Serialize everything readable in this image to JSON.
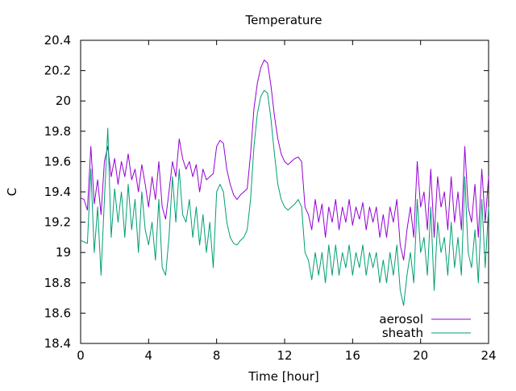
{
  "chart_data": {
    "type": "line",
    "title": "Temperature",
    "xlabel": "Time [hour]",
    "ylabel": "C",
    "xlim": [
      0,
      24
    ],
    "ylim": [
      18.4,
      20.4
    ],
    "x_ticks": [
      0,
      4,
      8,
      12,
      16,
      20,
      24
    ],
    "x_tick_labels": [
      "0",
      "4",
      "8",
      "12",
      "16",
      "20",
      "24"
    ],
    "y_ticks": [
      18.4,
      18.6,
      18.8,
      19.0,
      19.2,
      19.4,
      19.6,
      19.8,
      20.0,
      20.2,
      20.4
    ],
    "y_tick_labels": [
      "18.4",
      "18.6",
      "18.8",
      "19",
      "19.2",
      "19.4",
      "19.6",
      "19.8",
      "20",
      "20.2",
      "20.4"
    ],
    "grid": false,
    "legend_position": "bottom-right",
    "series": [
      {
        "name": "aerosol",
        "color": "#9400d3",
        "x": [
          0,
          0.2,
          0.4,
          0.6,
          0.8,
          1.0,
          1.2,
          1.4,
          1.6,
          1.8,
          2.0,
          2.2,
          2.4,
          2.6,
          2.8,
          3.0,
          3.2,
          3.4,
          3.6,
          3.8,
          4.0,
          4.2,
          4.4,
          4.6,
          4.8,
          5.0,
          5.2,
          5.4,
          5.6,
          5.8,
          6.0,
          6.2,
          6.4,
          6.6,
          6.8,
          7.0,
          7.2,
          7.4,
          7.6,
          7.8,
          8.0,
          8.2,
          8.4,
          8.6,
          8.8,
          9.0,
          9.2,
          9.4,
          9.6,
          9.8,
          10.0,
          10.2,
          10.4,
          10.6,
          10.8,
          11.0,
          11.2,
          11.4,
          11.6,
          11.8,
          12.0,
          12.2,
          12.4,
          12.6,
          12.8,
          13.0,
          13.2,
          13.4,
          13.6,
          13.8,
          14.0,
          14.2,
          14.4,
          14.6,
          14.8,
          15.0,
          15.2,
          15.4,
          15.6,
          15.8,
          16.0,
          16.2,
          16.4,
          16.6,
          16.8,
          17.0,
          17.2,
          17.4,
          17.6,
          17.8,
          18.0,
          18.2,
          18.4,
          18.6,
          18.8,
          19.0,
          19.2,
          19.4,
          19.6,
          19.8,
          20.0,
          20.2,
          20.4,
          20.6,
          20.8,
          21.0,
          21.2,
          21.4,
          21.6,
          21.8,
          22.0,
          22.2,
          22.4,
          22.6,
          22.8,
          23.0,
          23.2,
          23.4,
          23.6,
          23.8,
          24.0
        ],
        "y": [
          19.36,
          19.35,
          19.28,
          19.7,
          19.32,
          19.48,
          19.25,
          19.6,
          19.7,
          19.5,
          19.62,
          19.45,
          19.6,
          19.5,
          19.65,
          19.48,
          19.55,
          19.4,
          19.58,
          19.45,
          19.3,
          19.5,
          19.35,
          19.6,
          19.3,
          19.22,
          19.4,
          19.6,
          19.5,
          19.75,
          19.62,
          19.55,
          19.6,
          19.5,
          19.58,
          19.4,
          19.55,
          19.48,
          19.5,
          19.52,
          19.7,
          19.74,
          19.72,
          19.55,
          19.45,
          19.38,
          19.35,
          19.38,
          19.4,
          19.42,
          19.65,
          19.95,
          20.12,
          20.22,
          20.27,
          20.25,
          20.1,
          19.9,
          19.75,
          19.65,
          19.6,
          19.58,
          19.6,
          19.62,
          19.63,
          19.6,
          19.3,
          19.25,
          19.15,
          19.35,
          19.2,
          19.32,
          19.1,
          19.3,
          19.2,
          19.35,
          19.15,
          19.3,
          19.2,
          19.35,
          19.18,
          19.3,
          19.22,
          19.33,
          19.15,
          19.3,
          19.2,
          19.3,
          19.1,
          19.25,
          19.1,
          19.3,
          19.2,
          19.35,
          19.05,
          18.95,
          19.15,
          19.3,
          19.1,
          19.6,
          19.3,
          19.4,
          19.15,
          19.55,
          19.1,
          19.5,
          19.3,
          19.4,
          19.15,
          19.5,
          19.2,
          19.4,
          19.15,
          19.7,
          19.3,
          19.2,
          19.45,
          19.1,
          19.55,
          19.2,
          19.5
        ]
      },
      {
        "name": "sheath",
        "color": "#009e73",
        "x": [
          0,
          0.2,
          0.4,
          0.6,
          0.8,
          1.0,
          1.2,
          1.4,
          1.6,
          1.8,
          2.0,
          2.2,
          2.4,
          2.6,
          2.8,
          3.0,
          3.2,
          3.4,
          3.6,
          3.8,
          4.0,
          4.2,
          4.4,
          4.6,
          4.8,
          5.0,
          5.2,
          5.4,
          5.6,
          5.8,
          6.0,
          6.2,
          6.4,
          6.6,
          6.8,
          7.0,
          7.2,
          7.4,
          7.6,
          7.8,
          8.0,
          8.2,
          8.4,
          8.6,
          8.8,
          9.0,
          9.2,
          9.4,
          9.6,
          9.8,
          10.0,
          10.2,
          10.4,
          10.6,
          10.8,
          11.0,
          11.2,
          11.4,
          11.6,
          11.8,
          12.0,
          12.2,
          12.4,
          12.6,
          12.8,
          13.0,
          13.2,
          13.4,
          13.6,
          13.8,
          14.0,
          14.2,
          14.4,
          14.6,
          14.8,
          15.0,
          15.2,
          15.4,
          15.6,
          15.8,
          16.0,
          16.2,
          16.4,
          16.6,
          16.8,
          17.0,
          17.2,
          17.4,
          17.6,
          17.8,
          18.0,
          18.2,
          18.4,
          18.6,
          18.8,
          19.0,
          19.2,
          19.4,
          19.6,
          19.8,
          20.0,
          20.2,
          20.4,
          20.6,
          20.8,
          21.0,
          21.2,
          21.4,
          21.6,
          21.8,
          22.0,
          22.2,
          22.4,
          22.6,
          22.8,
          23.0,
          23.2,
          23.4,
          23.6,
          23.8,
          24.0
        ],
        "y": [
          19.08,
          19.07,
          19.06,
          19.55,
          19.0,
          19.3,
          18.85,
          19.35,
          19.82,
          19.1,
          19.42,
          19.2,
          19.4,
          19.1,
          19.45,
          19.15,
          19.35,
          19.0,
          19.4,
          19.15,
          19.05,
          19.2,
          18.95,
          19.35,
          18.9,
          18.85,
          19.1,
          19.5,
          19.2,
          19.55,
          19.25,
          19.2,
          19.35,
          19.1,
          19.3,
          19.05,
          19.25,
          19.0,
          19.2,
          18.9,
          19.4,
          19.45,
          19.4,
          19.2,
          19.1,
          19.06,
          19.05,
          19.08,
          19.1,
          19.15,
          19.35,
          19.7,
          19.92,
          20.03,
          20.07,
          20.05,
          19.88,
          19.65,
          19.45,
          19.35,
          19.3,
          19.28,
          19.3,
          19.32,
          19.35,
          19.3,
          19.0,
          18.95,
          18.82,
          19.0,
          18.85,
          19.0,
          18.8,
          19.05,
          18.85,
          19.05,
          18.85,
          19.0,
          18.9,
          19.05,
          18.85,
          19.0,
          18.9,
          19.05,
          18.85,
          19.0,
          18.9,
          19.0,
          18.8,
          18.95,
          18.8,
          19.0,
          18.85,
          19.05,
          18.75,
          18.65,
          18.85,
          19.0,
          18.8,
          19.35,
          19.0,
          19.1,
          18.85,
          19.3,
          18.75,
          19.2,
          19.0,
          19.1,
          18.85,
          19.2,
          18.9,
          19.1,
          18.85,
          19.5,
          19.0,
          18.9,
          19.15,
          18.8,
          19.35,
          18.9,
          19.3
        ]
      }
    ]
  }
}
